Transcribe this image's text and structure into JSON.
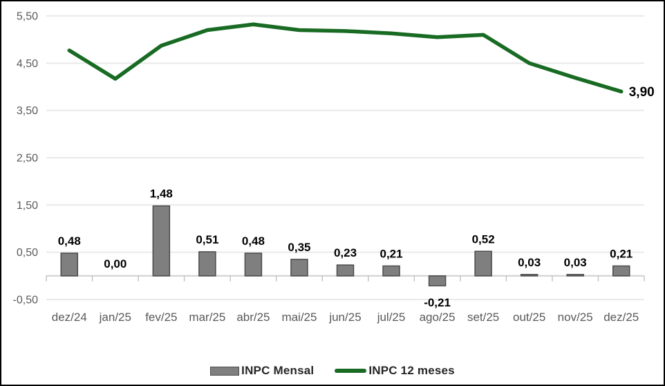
{
  "chart_data": {
    "type": "bar",
    "combo": "bar+line",
    "title": "",
    "xlabel": "",
    "ylabel": "",
    "categories": [
      "dez/24",
      "jan/25",
      "fev/25",
      "mar/25",
      "abr/25",
      "mai/25",
      "jun/25",
      "jul/25",
      "ago/25",
      "set/25",
      "out/25",
      "nov/25",
      "dez/25"
    ],
    "series": [
      {
        "name": "INPC Mensal",
        "type": "bar",
        "values": [
          0.48,
          0.0,
          1.48,
          0.51,
          0.48,
          0.35,
          0.23,
          0.21,
          -0.21,
          0.52,
          0.03,
          0.03,
          0.21
        ],
        "labels": [
          "0,48",
          "0,00",
          "1,48",
          "0,51",
          "0,48",
          "0,35",
          "0,23",
          "0,21",
          "-0,21",
          "0,52",
          "0,03",
          "0,03",
          "0,21"
        ]
      },
      {
        "name": "INPC 12 meses",
        "type": "line",
        "values": [
          4.77,
          4.17,
          4.87,
          5.2,
          5.32,
          5.2,
          5.18,
          5.13,
          5.05,
          5.1,
          4.5,
          4.19,
          3.9
        ],
        "end_label": "3,90"
      }
    ],
    "y_axis": {
      "tick_labels": [
        "5,50",
        "4,50",
        "3,50",
        "2,50",
        "1,50",
        "0,50",
        "-0,50"
      ],
      "tick_values": [
        5.5,
        4.5,
        3.5,
        2.5,
        1.5,
        0.5,
        -0.5
      ],
      "min": -0.5,
      "max": 5.5
    },
    "grid": true,
    "legend_position": "bottom"
  },
  "legend": {
    "items": [
      {
        "label": "INPC Mensal",
        "swatch": "bar"
      },
      {
        "label": "INPC 12 meses",
        "swatch": "line"
      }
    ]
  },
  "colors": {
    "bar_fill": "#7f7f7f",
    "bar_border": "#4a4a4a",
    "line": "#196b24",
    "gridline": "#e9e9e9",
    "axis_line": "#cfcfcf",
    "axis_tick": "#c4c4c4",
    "tick_label": "#595959",
    "value_label": "#000000",
    "legend_text": "#262626",
    "background": "#ffffff",
    "frame_border": "#000000"
  }
}
